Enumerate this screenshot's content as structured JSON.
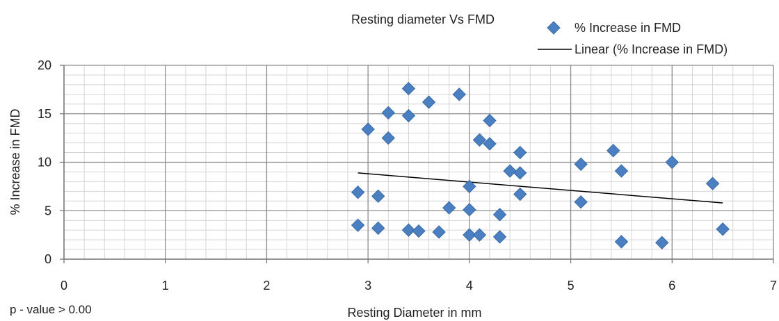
{
  "footnote": "p -  value > 0.00",
  "chart_data": {
    "type": "scatter",
    "title": "Resting diameter Vs FMD",
    "xlabel": "Resting Diameter in mm",
    "ylabel": "% Increase in FMD",
    "xlim": [
      0,
      7
    ],
    "ylim": [
      0,
      20
    ],
    "xticks": [
      "0",
      "1",
      "2",
      "3",
      "4",
      "5",
      "6",
      "7"
    ],
    "yticks": [
      "0",
      "5",
      "10",
      "15",
      "20"
    ],
    "grid": true,
    "minor_grid": true,
    "legend_position": "top-right",
    "series": [
      {
        "name": "% Increase in FMD",
        "color": "#4a7fc1",
        "marker": "diamond",
        "points": [
          [
            2.9,
            6.9
          ],
          [
            2.9,
            3.5
          ],
          [
            3.0,
            13.4
          ],
          [
            3.1,
            6.5
          ],
          [
            3.1,
            3.2
          ],
          [
            3.2,
            15.1
          ],
          [
            3.2,
            12.5
          ],
          [
            3.4,
            17.6
          ],
          [
            3.4,
            14.8
          ],
          [
            3.4,
            3.0
          ],
          [
            3.5,
            2.9
          ],
          [
            3.6,
            16.2
          ],
          [
            3.7,
            2.8
          ],
          [
            3.8,
            5.3
          ],
          [
            3.9,
            17.0
          ],
          [
            4.0,
            7.5
          ],
          [
            4.0,
            5.1
          ],
          [
            4.0,
            2.5
          ],
          [
            4.1,
            12.3
          ],
          [
            4.1,
            2.5
          ],
          [
            4.2,
            14.3
          ],
          [
            4.2,
            11.9
          ],
          [
            4.3,
            4.6
          ],
          [
            4.3,
            2.3
          ],
          [
            4.4,
            9.1
          ],
          [
            4.5,
            11.0
          ],
          [
            4.5,
            8.9
          ],
          [
            4.5,
            6.7
          ],
          [
            5.1,
            9.8
          ],
          [
            5.1,
            5.9
          ],
          [
            5.42,
            11.2
          ],
          [
            5.5,
            9.1
          ],
          [
            5.5,
            1.8
          ],
          [
            5.9,
            1.7
          ],
          [
            6.0,
            10.0
          ],
          [
            6.4,
            7.8
          ],
          [
            6.5,
            3.1
          ]
        ]
      },
      {
        "name": "Linear (% Increase in FMD)",
        "color": "#000000",
        "type": "line",
        "points": [
          [
            2.9,
            8.9
          ],
          [
            6.5,
            5.8
          ]
        ]
      }
    ]
  }
}
